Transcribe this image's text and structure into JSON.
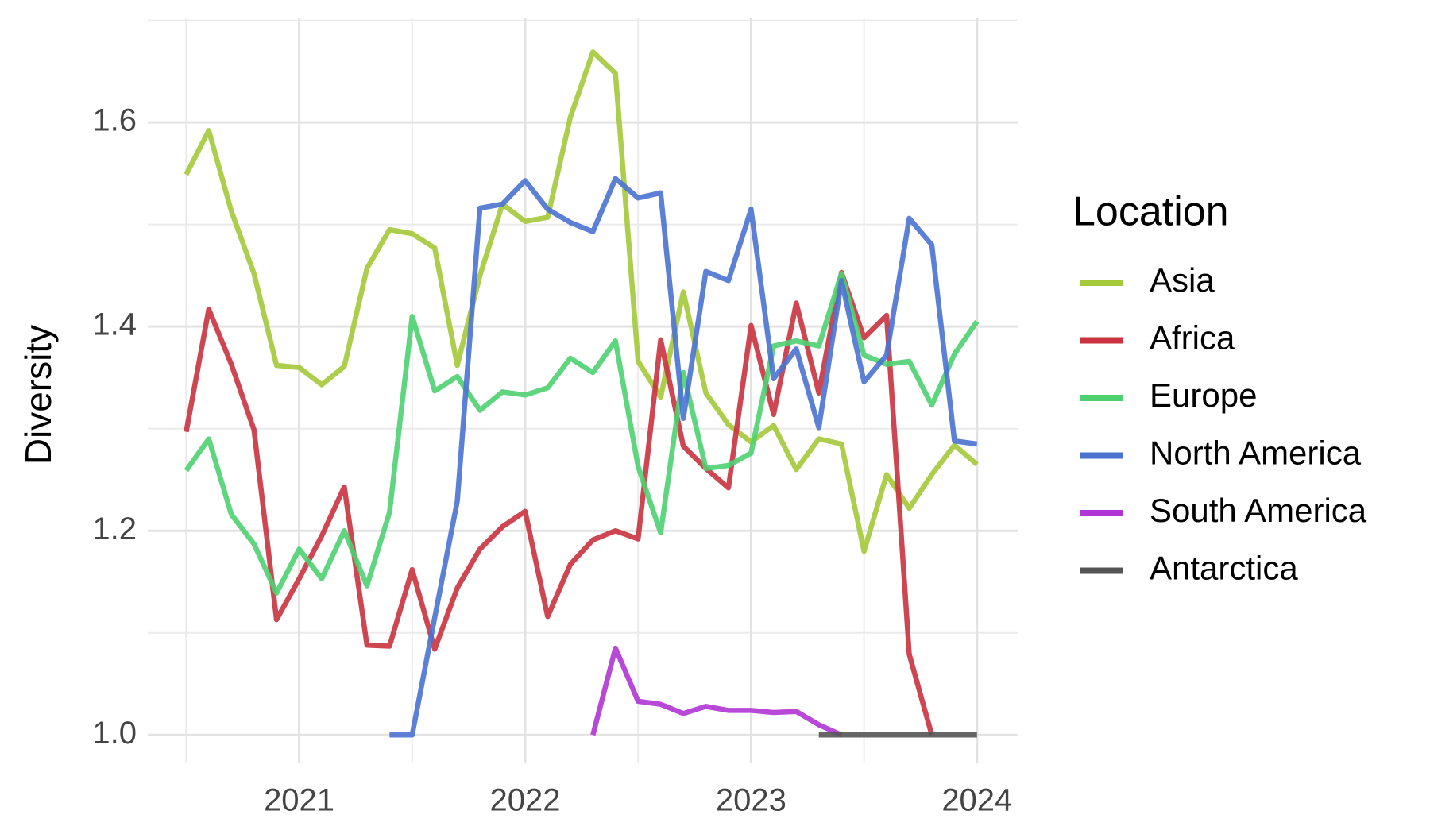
{
  "chart_data": {
    "type": "line",
    "y_label": "Diversity",
    "legend_title": "Location",
    "legend": "right",
    "grid": true,
    "x": [
      2020.5,
      2020.6,
      2020.7,
      2020.8,
      2020.9,
      2021.0,
      2021.1,
      2021.2,
      2021.3,
      2021.4,
      2021.5,
      2021.6,
      2021.7,
      2021.8,
      2021.9,
      2022.0,
      2022.1,
      2022.2,
      2022.3,
      2022.4,
      2022.5,
      2022.6,
      2022.7,
      2022.8,
      2022.9,
      2023.0,
      2023.1,
      2023.2,
      2023.3,
      2023.4,
      2023.5,
      2023.6,
      2023.7,
      2023.8,
      2023.9,
      2024.0
    ],
    "xlim": [
      2020.33,
      2024.18
    ],
    "xticks": [
      2021,
      2022,
      2023,
      2024
    ],
    "ylim": [
      0.973,
      1.702
    ],
    "yticks": [
      {
        "value": 1,
        "label": "1.0"
      },
      1.2,
      1.4,
      1.6
    ],
    "series": [
      {
        "name": "Asia",
        "color": "#a4c93a",
        "values": [
          1.549,
          1.592,
          1.513,
          1.452,
          1.362,
          1.36,
          1.343,
          1.361,
          1.457,
          1.495,
          1.491,
          1.477,
          1.362,
          1.45,
          1.52,
          1.503,
          1.507,
          1.605,
          1.669,
          1.648,
          1.366,
          1.331,
          1.434,
          1.335,
          1.304,
          1.287,
          1.303,
          1.26,
          1.29,
          1.285,
          1.18,
          1.255,
          1.222,
          1.255,
          1.284,
          1.265
        ]
      },
      {
        "name": "Africa",
        "color": "#c9323e",
        "values": [
          1.297,
          1.417,
          1.363,
          1.299,
          1.113,
          1.153,
          1.195,
          1.243,
          1.088,
          1.087,
          1.162,
          1.084,
          1.144,
          1.182,
          1.204,
          1.219,
          1.116,
          1.167,
          1.191,
          1.2,
          1.192,
          1.387,
          1.283,
          1.261,
          1.242,
          1.401,
          1.314,
          1.423,
          1.335,
          1.453,
          1.389,
          1.411,
          1.079,
          1.0,
          null,
          null
        ]
      },
      {
        "name": "Europe",
        "color": "#4cd070",
        "values": [
          1.259,
          1.29,
          1.216,
          1.187,
          1.139,
          1.182,
          1.153,
          1.2,
          1.146,
          1.218,
          1.41,
          1.337,
          1.351,
          1.318,
          1.336,
          1.333,
          1.34,
          1.369,
          1.355,
          1.386,
          1.263,
          1.198,
          1.355,
          1.261,
          1.264,
          1.276,
          1.381,
          1.386,
          1.381,
          1.452,
          1.372,
          1.363,
          1.366,
          1.323,
          1.373,
          1.405
        ]
      },
      {
        "name": "North America",
        "color": "#4a72d0",
        "values": [
          null,
          null,
          null,
          null,
          null,
          null,
          null,
          null,
          null,
          1.0,
          1.0,
          1.115,
          1.229,
          1.516,
          1.52,
          1.543,
          1.515,
          1.502,
          1.493,
          1.545,
          1.526,
          1.531,
          1.31,
          1.454,
          1.445,
          1.515,
          1.349,
          1.378,
          1.301,
          1.445,
          1.346,
          1.372,
          1.506,
          1.48,
          1.288,
          1.285
        ]
      },
      {
        "name": "South America",
        "color": "#b035d4",
        "values": [
          null,
          null,
          null,
          null,
          null,
          null,
          null,
          null,
          null,
          null,
          null,
          null,
          null,
          null,
          null,
          null,
          null,
          null,
          1.0,
          1.085,
          1.033,
          1.03,
          1.021,
          1.028,
          1.024,
          1.024,
          1.022,
          1.023,
          1.01,
          1.0,
          null,
          null,
          null,
          null,
          null,
          null
        ]
      },
      {
        "name": "Antarctica",
        "color": "#555555",
        "values": [
          null,
          null,
          null,
          null,
          null,
          null,
          null,
          null,
          null,
          null,
          null,
          null,
          null,
          null,
          null,
          null,
          null,
          null,
          null,
          null,
          null,
          null,
          null,
          null,
          null,
          null,
          null,
          null,
          1.0,
          1.0,
          1.0,
          1.0,
          1.0,
          1.0,
          1.0,
          1.0
        ]
      }
    ]
  }
}
